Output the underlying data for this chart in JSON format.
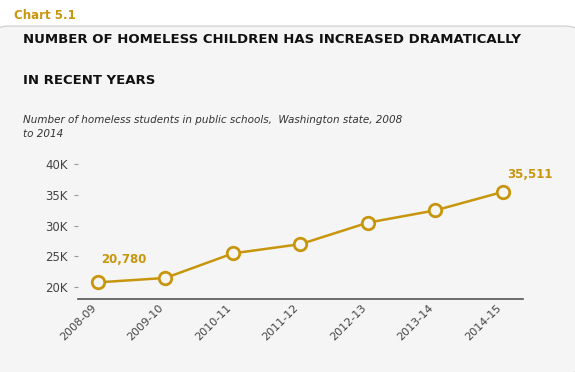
{
  "chart_label": "Chart 5.1",
  "chart_label_color": "#c8960c",
  "title_line1": "NUMBER OF HOMELESS CHILDREN HAS INCREASED DRAMATICALLY",
  "title_line2": "IN RECENT YEARS",
  "subtitle": "Number of homeless students in public schools,  Washington state, 2008\nto 2014",
  "years": [
    "2008-09",
    "2009-10",
    "2010-11",
    "2011-12",
    "2012-13",
    "2013-14",
    "2014-15"
  ],
  "values": [
    20780,
    21500,
    25500,
    27000,
    30500,
    32500,
    35511
  ],
  "line_color": "#c8960c",
  "marker_color": "#c8960c",
  "marker_face": "#f5f5f5",
  "annotate_first_label": "20,780",
  "annotate_last_label": "35,511",
  "annotate_color": "#c8960c",
  "ylim": [
    18000,
    41000
  ],
  "yticks": [
    20000,
    25000,
    30000,
    35000,
    40000
  ],
  "ytick_labels": [
    "20K",
    "25K",
    "30K",
    "35K",
    "40K"
  ],
  "background_color": "#ffffff",
  "box_background": "#f5f5f5",
  "box_edge_color": "#cccccc"
}
